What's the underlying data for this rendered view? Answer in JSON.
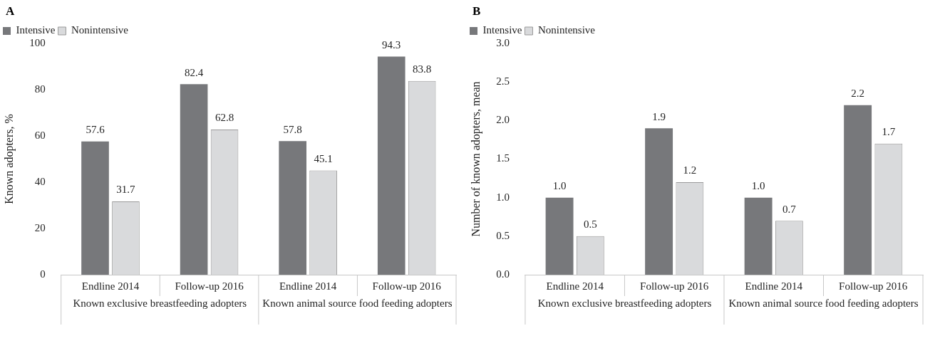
{
  "chart_data": [
    {
      "type": "bar",
      "title": "A",
      "ylabel": "Known adopters, %",
      "categories": [
        "Endline 2014",
        "Follow-up 2016",
        "Endline 2014",
        "Follow-up 2016"
      ],
      "series": [
        {
          "name": "Intensive",
          "color": "#77787b",
          "values": [
            57.6,
            82.4,
            57.8,
            94.3
          ]
        },
        {
          "name": "Nonintensive",
          "color": "#d9dadc",
          "values": [
            31.7,
            62.8,
            45.1,
            83.8
          ]
        }
      ],
      "ylim": [
        0,
        100
      ],
      "yticks": [
        0,
        20,
        40,
        60,
        80,
        100
      ],
      "grid": false,
      "legend": "top left",
      "data_labels": true,
      "annotations": [
        "Known exclusive breastfeeding adopters",
        "Known animal source food feeding adopters"
      ]
    },
    {
      "type": "bar",
      "title": "B",
      "ylabel": "Number of known adopters, mean",
      "categories": [
        "Endline 2014",
        "Follow-up 2016",
        "Endline 2014",
        "Follow-up 2016"
      ],
      "series": [
        {
          "name": "Intensive",
          "color": "#77787b",
          "values": [
            1.0,
            1.9,
            1.0,
            2.2
          ],
          "value_labels": [
            "1.0",
            "1.9",
            "1.0",
            "2.2"
          ]
        },
        {
          "name": "Nonintensive",
          "color": "#d9dadc",
          "values": [
            0.5,
            1.2,
            0.7,
            1.7
          ],
          "value_labels": [
            "0.5",
            "1.2",
            "0.7",
            "1.7"
          ]
        }
      ],
      "ylim": [
        0,
        3
      ],
      "yticks": [
        {
          "value": 0,
          "label": "0.0"
        },
        {
          "value": 0.5,
          "label": "0.5"
        },
        {
          "value": 1,
          "label": "1.0"
        },
        {
          "value": 1.5,
          "label": "1.5"
        },
        {
          "value": 2,
          "label": "2.0"
        },
        {
          "value": 2.5,
          "label": "2.5"
        },
        {
          "value": 3,
          "label": "3.0"
        }
      ],
      "grid": false,
      "legend": "top left",
      "annotations": [
        "Known exclusive breastfeeding adopters",
        "Known animal source food feeding adopters"
      ]
    }
  ]
}
